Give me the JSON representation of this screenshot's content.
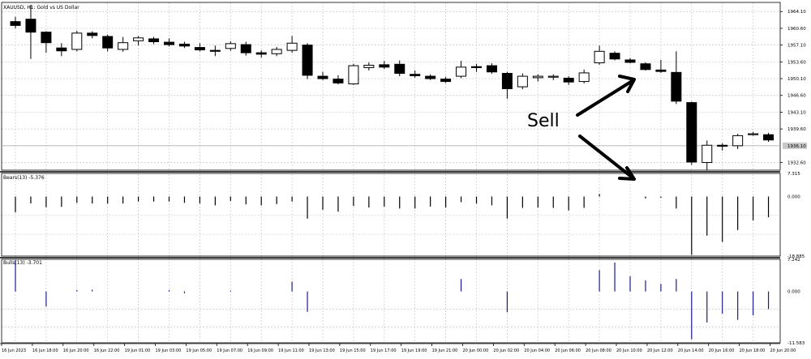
{
  "window": {
    "symbol_title": "XAUUSD, H1:  Gold vs US Dollar"
  },
  "annotation": {
    "label": "Sell"
  },
  "colors": {
    "bull_body": "#ffffff",
    "bear_body": "#000000",
    "candle_outline": "#000000",
    "bears_histogram": "#000000",
    "bulls_histogram": "#1a1a8c",
    "grid": "#c8c8c8",
    "separator": "#000000",
    "current_price_bg": "#c8c8c8",
    "annotation": "#000000"
  },
  "chart_data": [
    {
      "type": "candlestick",
      "panel": "price",
      "symbol": "XAUUSD",
      "timeframe": "H1",
      "title": "XAUUSD, H1:  Gold vs US Dollar",
      "y_ticks": [
        "1964.10",
        "1960.60",
        "1957.10",
        "1953.60",
        "1950.10",
        "1946.60",
        "1943.10",
        "1939.60",
        "1932.60"
      ],
      "current_price_label": "1936.10",
      "ylim": [
        1931,
        1966
      ],
      "ohlc": [
        [
          1962.0,
          1963.0,
          1960.6,
          1961.2
        ],
        [
          1962.5,
          1965.5,
          1954.2,
          1959.8
        ],
        [
          1959.8,
          1960.0,
          1955.5,
          1957.6
        ],
        [
          1956.5,
          1957.5,
          1954.8,
          1955.9
        ],
        [
          1956.2,
          1960.1,
          1955.8,
          1959.6
        ],
        [
          1959.6,
          1960.0,
          1958.5,
          1959.1
        ],
        [
          1958.9,
          1959.3,
          1955.8,
          1956.5
        ],
        [
          1956.2,
          1958.8,
          1955.7,
          1957.6
        ],
        [
          1958.0,
          1959.0,
          1957.0,
          1958.6
        ],
        [
          1958.4,
          1958.8,
          1957.3,
          1957.8
        ],
        [
          1957.7,
          1958.5,
          1956.8,
          1957.2
        ],
        [
          1957.3,
          1957.8,
          1956.5,
          1956.9
        ],
        [
          1956.6,
          1957.5,
          1955.8,
          1956.1
        ],
        [
          1956.0,
          1957.0,
          1954.8,
          1955.8
        ],
        [
          1956.4,
          1957.9,
          1955.9,
          1957.4
        ],
        [
          1957.2,
          1957.8,
          1954.9,
          1955.5
        ],
        [
          1955.5,
          1956.0,
          1954.5,
          1955.2
        ],
        [
          1955.3,
          1956.7,
          1954.8,
          1956.2
        ],
        [
          1956.0,
          1959.0,
          1955.5,
          1957.5
        ],
        [
          1957.1,
          1957.5,
          1950.0,
          1950.8
        ],
        [
          1950.6,
          1951.5,
          1949.8,
          1950.1
        ],
        [
          1950.0,
          1950.8,
          1948.9,
          1949.2
        ],
        [
          1949.0,
          1953.2,
          1948.8,
          1952.8
        ],
        [
          1952.4,
          1953.5,
          1951.8,
          1952.9
        ],
        [
          1953.0,
          1953.8,
          1952.1,
          1952.5
        ],
        [
          1953.1,
          1953.9,
          1950.6,
          1951.2
        ],
        [
          1951.0,
          1951.8,
          1950.3,
          1950.7
        ],
        [
          1950.6,
          1951.0,
          1949.8,
          1950.1
        ],
        [
          1950.0,
          1950.5,
          1949.2,
          1949.5
        ],
        [
          1950.6,
          1953.8,
          1950.2,
          1952.5
        ],
        [
          1952.6,
          1953.2,
          1951.5,
          1952.4
        ],
        [
          1952.8,
          1953.3,
          1951.1,
          1951.5
        ],
        [
          1951.2,
          1951.5,
          1945.9,
          1948.0
        ],
        [
          1948.4,
          1951.2,
          1947.9,
          1950.6
        ],
        [
          1950.3,
          1951.0,
          1949.5,
          1950.6
        ],
        [
          1950.4,
          1951.0,
          1949.8,
          1950.6
        ],
        [
          1950.2,
          1950.6,
          1948.8,
          1949.4
        ],
        [
          1949.5,
          1952.0,
          1949.1,
          1951.3
        ],
        [
          1953.4,
          1957.0,
          1953.0,
          1955.8
        ],
        [
          1955.4,
          1955.8,
          1953.9,
          1954.2
        ],
        [
          1954.0,
          1954.4,
          1953.3,
          1953.5
        ],
        [
          1953.2,
          1953.5,
          1951.8,
          1952.0
        ],
        [
          1951.9,
          1954.0,
          1951.3,
          1951.6
        ],
        [
          1951.4,
          1955.8,
          1944.8,
          1945.4
        ],
        [
          1945.1,
          1945.3,
          1932.1,
          1932.7
        ],
        [
          1932.6,
          1937.2,
          1931.0,
          1936.2
        ],
        [
          1936.2,
          1936.6,
          1935.1,
          1936.0
        ],
        [
          1936.1,
          1938.6,
          1935.4,
          1938.2
        ],
        [
          1938.4,
          1939.0,
          1938.2,
          1938.6
        ],
        [
          1938.4,
          1938.8,
          1936.9,
          1937.3
        ]
      ]
    },
    {
      "type": "histogram",
      "panel": "bears",
      "legend": "Bears(13) -5.376",
      "y_ticks": [
        "7.315",
        "0.000",
        "-18.885"
      ],
      "ylim": [
        -18.885,
        7.315
      ],
      "values": [
        -5.0,
        -2.2,
        -3.4,
        -3.3,
        -2.0,
        -2.2,
        -2.2,
        -2.2,
        -1.6,
        -1.6,
        -1.6,
        -2.0,
        -2.2,
        -2.8,
        -1.4,
        -2.5,
        -2.8,
        -2.4,
        -1.6,
        -7.0,
        -4.2,
        -4.8,
        -3.0,
        -3.5,
        -3.2,
        -3.8,
        -3.8,
        -3.2,
        -3.5,
        -1.8,
        -2.2,
        -2.8,
        -7.0,
        -3.6,
        -3.5,
        -3.6,
        -4.4,
        -3.6,
        0.8,
        0.0,
        0.0,
        -0.6,
        -0.4,
        -3.8,
        -18.5,
        -12.4,
        -14.4,
        -10.6,
        -7.6,
        -6.6
      ]
    },
    {
      "type": "histogram",
      "panel": "bulls",
      "legend": "Bulls(13) -3.701",
      "y_ticks": [
        "7.242",
        "0.000",
        "-11.583"
      ],
      "ylim": [
        -11.583,
        7.242
      ],
      "values": [
        7.0,
        0.0,
        -3.4,
        0.0,
        0.3,
        0.4,
        0.0,
        0.0,
        0.0,
        0.0,
        0.3,
        -0.4,
        0.0,
        0.0,
        0.2,
        0.0,
        0.0,
        0.0,
        2.2,
        -4.6,
        0.0,
        0.0,
        0.0,
        0.0,
        0.0,
        0.0,
        0.0,
        0.0,
        0.0,
        2.8,
        0.0,
        0.0,
        -4.7,
        0.0,
        0.0,
        0.0,
        0.0,
        0.0,
        4.8,
        6.5,
        3.4,
        2.5,
        1.7,
        2.8,
        -10.8,
        -7.0,
        -5.0,
        -6.4,
        -5.4,
        -4.0
      ]
    }
  ],
  "time_axis": {
    "labels": [
      "16 Jun 2023",
      "16 Jun 18:00",
      "16 Jun 20:00",
      "16 Jun 22:00",
      "19 Jun 01:00",
      "19 Jun 03:00",
      "19 Jun 05:00",
      "19 Jun 07:00",
      "19 Jun 09:00",
      "19 Jun 11:00",
      "19 Jun 13:00",
      "19 Jun 15:00",
      "19 Jun 17:00",
      "19 Jun 19:00",
      "19 Jun 21:00",
      "20 Jun 00:00",
      "20 Jun 02:00",
      "20 Jun 04:00",
      "20 Jun 06:00",
      "20 Jun 08:00",
      "20 Jun 10:00",
      "20 Jun 12:00",
      "20 Jun 14:00",
      "20 Jun 16:00",
      "20 Jun 18:00",
      "20 Jun 20:00"
    ]
  }
}
